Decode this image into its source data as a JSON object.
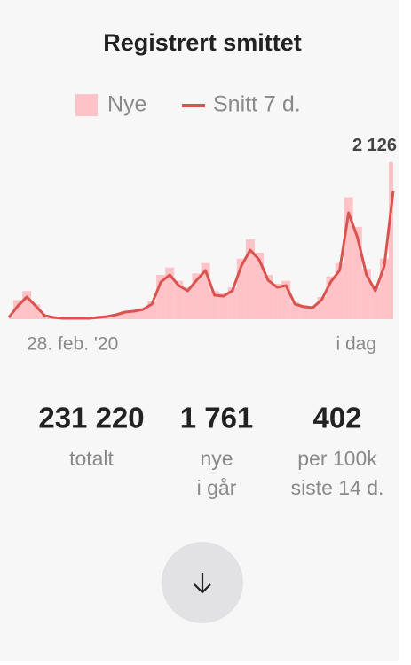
{
  "chart_data": {
    "type": "bar-line",
    "title": "Registrert smittet",
    "categories": [
      "28. feb. '20",
      null,
      null,
      null,
      null,
      null,
      null,
      null,
      null,
      null,
      null,
      null,
      null,
      null,
      null,
      null,
      null,
      null,
      null,
      null,
      null,
      null,
      null,
      null,
      null,
      null,
      null,
      null,
      null,
      null,
      null,
      null,
      null,
      null,
      null,
      null,
      null,
      null,
      null,
      null,
      null,
      null,
      null,
      "i dag"
    ],
    "series": [
      {
        "name": "Nye",
        "color": "#ffc2c6",
        "values": [
          30,
          260,
          380,
          200,
          60,
          30,
          15,
          15,
          10,
          15,
          30,
          40,
          70,
          110,
          120,
          150,
          240,
          600,
          700,
          520,
          430,
          620,
          760,
          380,
          350,
          430,
          820,
          1080,
          900,
          600,
          480,
          520,
          230,
          190,
          170,
          300,
          580,
          760,
          1650,
          1250,
          680,
          430,
          820,
          2126
        ],
        "value_labels": [
          null,
          null,
          null,
          null,
          null,
          null,
          null,
          null,
          null,
          null,
          null,
          null,
          null,
          null,
          null,
          null,
          null,
          null,
          null,
          null,
          null,
          null,
          null,
          null,
          null,
          null,
          null,
          null,
          null,
          null,
          null,
          null,
          null,
          null,
          null,
          null,
          null,
          null,
          null,
          null,
          null,
          null,
          null,
          "2 126"
        ]
      },
      {
        "name": "Snitt 7 d.",
        "color": "#d9534f",
        "values": [
          24,
          180,
          300,
          180,
          48,
          24,
          12,
          12,
          12,
          12,
          24,
          36,
          60,
          96,
          108,
          132,
          204,
          504,
          600,
          456,
          384,
          528,
          660,
          324,
          312,
          384,
          720,
          936,
          804,
          528,
          432,
          456,
          204,
          168,
          156,
          264,
          504,
          660,
          1440,
          1104,
          600,
          384,
          720,
          1740
        ]
      }
    ],
    "ylim": [
      0,
      2160
    ]
  },
  "stats": [
    {
      "value": "231 220",
      "caption": [
        "totalt"
      ]
    },
    {
      "value": "1 761",
      "caption": [
        "nye",
        "i går"
      ]
    },
    {
      "value": "402",
      "caption": [
        "per 100k",
        "siste 14 d."
      ]
    }
  ]
}
